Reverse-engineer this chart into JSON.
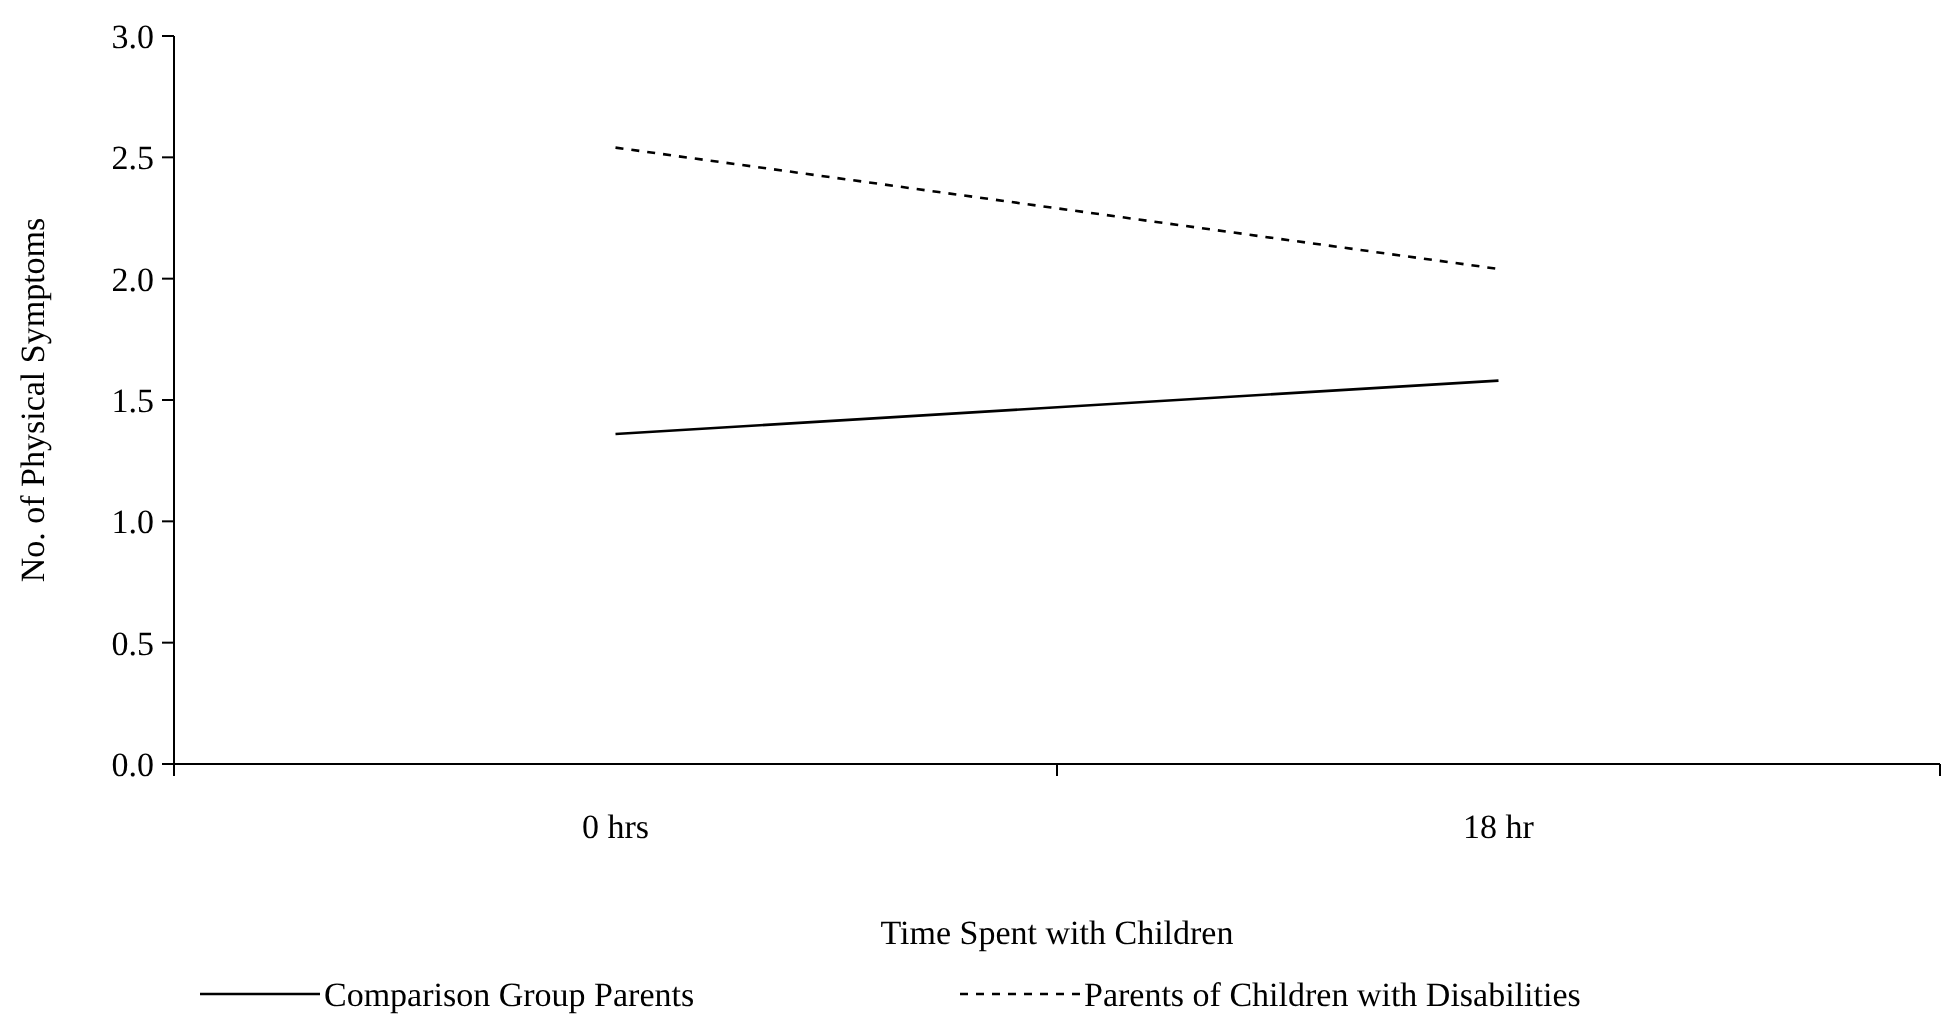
{
  "chart_data": {
    "type": "line",
    "xlabel": "Time Spent with Children",
    "ylabel": "No. of Physical Symptoms",
    "categories": [
      "0 hrs",
      "18 hr"
    ],
    "series": [
      {
        "name": "Comparison Group Parents",
        "color": "#000000",
        "values": [
          1.36,
          1.58
        ],
        "line_style": "solid"
      },
      {
        "name": "Parents of Children with Disabilities",
        "color": "#000000",
        "values": [
          2.54,
          2.04
        ],
        "line_style": "dashed"
      }
    ],
    "ylim": [
      0,
      3
    ],
    "yticks": [
      {
        "value": 0,
        "label": "0.0"
      },
      {
        "value": 0.5,
        "label": "0.5"
      },
      {
        "value": 1,
        "label": "1.0"
      },
      {
        "value": 1.5,
        "label": "1.5"
      },
      {
        "value": 2,
        "label": "2.0"
      },
      {
        "value": 2.5,
        "label": "2.5"
      },
      {
        "value": 3,
        "label": "3.0"
      }
    ],
    "grid": false,
    "legend": "bottom"
  }
}
